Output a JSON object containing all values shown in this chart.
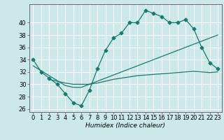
{
  "xlabel": "Humidex (Indice chaleur)",
  "bg_color": "#cce8e8",
  "grid_color": "#ffffff",
  "line_color": "#1a7a6e",
  "ylim": [
    25.5,
    43
  ],
  "xlim": [
    -0.5,
    23.5
  ],
  "yticks": [
    26,
    28,
    30,
    32,
    34,
    36,
    38,
    40
  ],
  "xticks": [
    0,
    1,
    2,
    3,
    4,
    5,
    6,
    7,
    8,
    9,
    10,
    11,
    12,
    13,
    14,
    15,
    16,
    17,
    18,
    19,
    20,
    21,
    22,
    23
  ],
  "line1_x": [
    0,
    1,
    2,
    3,
    4,
    5,
    6,
    7,
    8,
    9,
    10,
    11,
    12,
    13,
    14,
    15,
    16,
    17,
    18,
    19,
    20,
    21,
    22,
    23
  ],
  "line1_y": [
    34,
    32,
    31,
    30,
    28.5,
    27,
    26.5,
    29,
    32.5,
    35.5,
    37.5,
    38.3,
    40,
    40,
    42,
    41.5,
    41,
    40,
    40,
    40.5,
    39,
    36,
    33.5,
    32.5
  ],
  "line2_x": [
    0,
    1,
    2,
    3,
    4,
    5,
    6,
    7,
    8,
    9,
    10,
    11,
    12,
    13,
    14,
    15,
    16,
    17,
    18,
    19,
    20,
    21,
    22,
    23
  ],
  "line2_y": [
    33,
    32.2,
    31.4,
    30.6,
    29.8,
    29.5,
    29.5,
    30.0,
    30.5,
    31.0,
    31.5,
    32.0,
    32.5,
    33.0,
    33.5,
    34.0,
    34.5,
    35.0,
    35.5,
    36.0,
    36.5,
    37.0,
    37.5,
    38.0
  ],
  "line3_x": [
    2,
    3,
    4,
    5,
    6,
    7,
    8,
    9,
    10,
    11,
    12,
    13,
    14,
    15,
    16,
    17,
    18,
    19,
    20,
    21,
    22,
    23
  ],
  "line3_y": [
    30.8,
    30.5,
    30.2,
    30.0,
    30.0,
    30.0,
    30.2,
    30.5,
    30.8,
    31.0,
    31.2,
    31.4,
    31.5,
    31.6,
    31.7,
    31.8,
    31.9,
    32.0,
    32.1,
    32.0,
    31.9,
    32.0
  ],
  "marker_size": 2.5,
  "line_width": 0.9,
  "tick_fontsize": 6.0,
  "xlabel_fontsize": 6.5
}
